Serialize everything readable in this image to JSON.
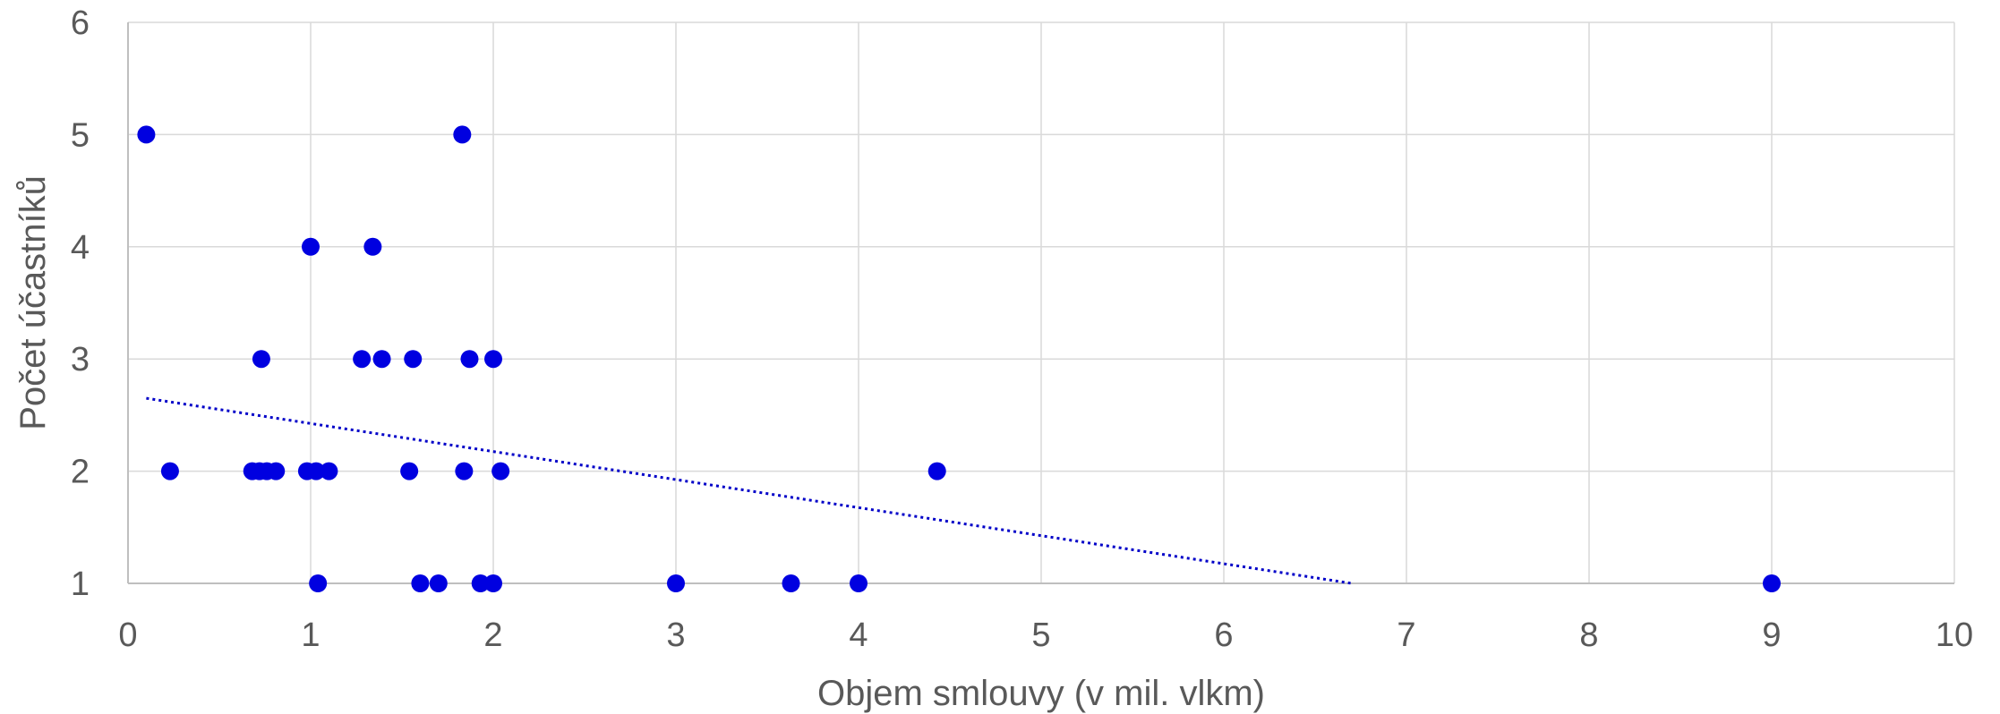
{
  "chart_data": {
    "type": "scatter",
    "title": "",
    "xlabel": "Objem smlouvy (v mil. vlkm)",
    "ylabel": "Počet účastníků",
    "xlim": [
      0,
      10
    ],
    "ylim": [
      1,
      6
    ],
    "xticks": [
      "0",
      "1",
      "2",
      "3",
      "4",
      "5",
      "6",
      "7",
      "8",
      "9",
      "10"
    ],
    "yticks": [
      "1",
      "2",
      "3",
      "4",
      "5",
      "6"
    ],
    "grid": true,
    "legend": "none",
    "point_color": "#0000e0",
    "trendline": {
      "type": "linear",
      "style": "dotted",
      "color": "#0000c8",
      "x": [
        0.1,
        6.7
      ],
      "y": [
        2.65,
        1.0
      ]
    },
    "points": [
      {
        "x": 0.1,
        "y": 5
      },
      {
        "x": 1.83,
        "y": 5
      },
      {
        "x": 1.0,
        "y": 4
      },
      {
        "x": 1.34,
        "y": 4
      },
      {
        "x": 0.73,
        "y": 3
      },
      {
        "x": 1.28,
        "y": 3
      },
      {
        "x": 1.39,
        "y": 3
      },
      {
        "x": 1.56,
        "y": 3
      },
      {
        "x": 1.87,
        "y": 3
      },
      {
        "x": 2.0,
        "y": 3
      },
      {
        "x": 0.23,
        "y": 2
      },
      {
        "x": 0.68,
        "y": 2
      },
      {
        "x": 0.72,
        "y": 2
      },
      {
        "x": 0.76,
        "y": 2
      },
      {
        "x": 0.81,
        "y": 2
      },
      {
        "x": 0.98,
        "y": 2
      },
      {
        "x": 1.03,
        "y": 2
      },
      {
        "x": 1.1,
        "y": 2
      },
      {
        "x": 1.54,
        "y": 2
      },
      {
        "x": 1.84,
        "y": 2
      },
      {
        "x": 2.04,
        "y": 2
      },
      {
        "x": 4.43,
        "y": 2
      },
      {
        "x": 1.04,
        "y": 1
      },
      {
        "x": 1.6,
        "y": 1
      },
      {
        "x": 1.7,
        "y": 1
      },
      {
        "x": 1.93,
        "y": 1
      },
      {
        "x": 2.0,
        "y": 1
      },
      {
        "x": 3.0,
        "y": 1
      },
      {
        "x": 3.63,
        "y": 1
      },
      {
        "x": 4.0,
        "y": 1
      },
      {
        "x": 9.0,
        "y": 1
      }
    ]
  }
}
